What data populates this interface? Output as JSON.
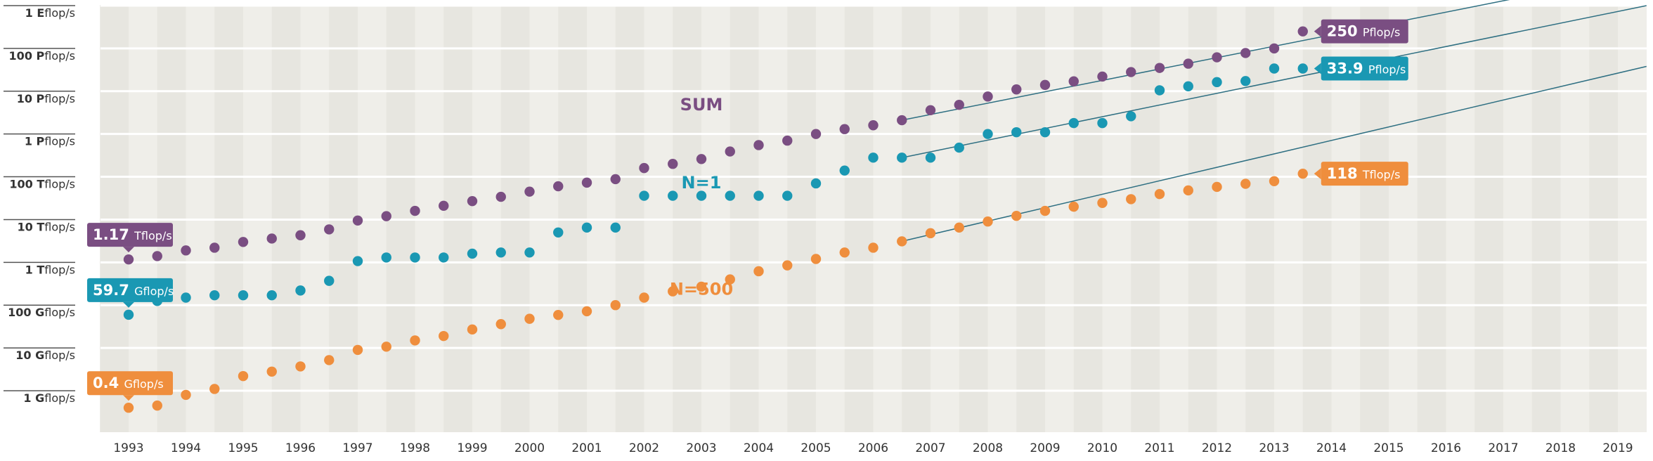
{
  "chart_data": {
    "type": "scatter",
    "title": "",
    "xlabel": "",
    "ylabel": "",
    "y_scale": "log",
    "y_unit": "flop/s",
    "ylim": [
      1000000000.0,
      1e+18
    ],
    "xlim": [
      1992.5,
      2019.5
    ],
    "x_ticks": [
      "1993",
      "1994",
      "1995",
      "1996",
      "1997",
      "1998",
      "1999",
      "2000",
      "2001",
      "2002",
      "2003",
      "2004",
      "2005",
      "2006",
      "2007",
      "2008",
      "2009",
      "2010",
      "2011",
      "2012",
      "2013",
      "2014",
      "2015",
      "2016",
      "2017",
      "2018",
      "2019"
    ],
    "y_ticks": [
      {
        "value": 1e+18,
        "prefix": "1",
        "unit_letter": "E",
        "suffix": "flop/s"
      },
      {
        "value": 1e+17,
        "prefix": "100",
        "unit_letter": "P",
        "suffix": "flop/s"
      },
      {
        "value": 1e+16,
        "prefix": "10",
        "unit_letter": "P",
        "suffix": "flop/s"
      },
      {
        "value": 1000000000000000.0,
        "prefix": "1",
        "unit_letter": "P",
        "suffix": "flop/s"
      },
      {
        "value": 100000000000000.0,
        "prefix": "100",
        "unit_letter": "T",
        "suffix": "flop/s"
      },
      {
        "value": 10000000000000.0,
        "prefix": "10",
        "unit_letter": "T",
        "suffix": "flop/s"
      },
      {
        "value": 1000000000000.0,
        "prefix": "1",
        "unit_letter": "T",
        "suffix": "flop/s"
      },
      {
        "value": 100000000000.0,
        "prefix": "100",
        "unit_letter": "G",
        "suffix": "flop/s"
      },
      {
        "value": 10000000000.0,
        "prefix": "10",
        "unit_letter": "G",
        "suffix": "flop/s"
      },
      {
        "value": 1000000000.0,
        "prefix": "1",
        "unit_letter": "G",
        "suffix": "flop/s"
      }
    ],
    "x": [
      1993.0,
      1993.5,
      1994.0,
      1994.5,
      1995.0,
      1995.5,
      1996.0,
      1996.5,
      1997.0,
      1997.5,
      1998.0,
      1998.5,
      1999.0,
      1999.5,
      2000.0,
      2000.5,
      2001.0,
      2001.5,
      2002.0,
      2002.5,
      2003.0,
      2003.5,
      2004.0,
      2004.5,
      2005.0,
      2005.5,
      2006.0,
      2006.5,
      2007.0,
      2007.5,
      2008.0,
      2008.5,
      2009.0,
      2009.5,
      2010.0,
      2010.5,
      2011.0,
      2011.5,
      2012.0,
      2012.5,
      2013.0,
      2013.5
    ],
    "series": [
      {
        "name": "SUM",
        "color": "#7a4e82",
        "values": [
          1170000000000.0,
          1400000000000.0,
          1900000000000.0,
          2200000000000.0,
          3000000000000.0,
          3600000000000.0,
          4300000000000.0,
          5900000000000.0,
          9500000000000.0,
          12000000000000.0,
          16000000000000.0,
          21000000000000.0,
          27000000000000.0,
          34000000000000.0,
          45000000000000.0,
          60000000000000.0,
          73000000000000.0,
          88000000000000.0,
          160000000000000.0,
          200000000000000.0,
          260000000000000.0,
          390000000000000.0,
          550000000000000.0,
          700000000000000.0,
          1000000000000000.0,
          1300000000000000.0,
          1600000000000000.0,
          2100000000000000.0,
          3600000000000000.0,
          4800000000000000.0,
          7500000000000000.0,
          1.1e+16,
          1.4e+16,
          1.7e+16,
          2.2e+16,
          2.8e+16,
          3.5e+16,
          4.4e+16,
          6.2e+16,
          7.8e+16,
          1e+17,
          2.5e+17
        ]
      },
      {
        "name": "N=1",
        "color": "#1a98b3",
        "values": [
          59700000000.0,
          125000000000.0,
          150000000000.0,
          170000000000.0,
          170000000000.0,
          170000000000.0,
          220000000000.0,
          370000000000.0,
          1070000000000.0,
          1300000000000.0,
          1300000000000.0,
          1300000000000.0,
          1600000000000.0,
          1700000000000.0,
          1700000000000.0,
          5000000000000.0,
          6500000000000.0,
          6500000000000.0,
          36000000000000.0,
          36000000000000.0,
          36000000000000.0,
          36000000000000.0,
          36000000000000.0,
          36000000000000.0,
          70000000000000.0,
          140000000000000.0,
          280000000000000.0,
          280000000000000.0,
          280000000000000.0,
          480000000000000.0,
          1000000000000000.0,
          1100000000000000.0,
          1100000000000000.0,
          1800000000000000.0,
          1800000000000000.0,
          2600000000000000.0,
          1.05e+16,
          1.3e+16,
          1.63e+16,
          1.73e+16,
          3.39e+16,
          3.39e+16
        ]
      },
      {
        "name": "N=500",
        "color": "#ef8e3d",
        "values": [
          400000000.0,
          450000000.0,
          800000000.0,
          1100000000.0,
          2200000000.0,
          2800000000.0,
          3700000000.0,
          5200000000.0,
          9000000000.0,
          10700000000.0,
          15000000000.0,
          19000000000.0,
          27000000000.0,
          36000000000.0,
          48000000000.0,
          59000000000.0,
          72000000000.0,
          100000000000.0,
          150000000000.0,
          210000000000.0,
          270000000000.0,
          400000000000.0,
          620000000000.0,
          850000000000.0,
          1200000000000.0,
          1700000000000.0,
          2200000000000.0,
          3100000000000.0,
          4800000000000.0,
          6500000000000.0,
          9000000000000.0,
          12200000000000.0,
          16000000000000.0,
          20000000000000.0,
          24500000000000.0,
          30000000000000.0,
          39500000000000.0,
          48000000000000.0,
          58000000000000.0,
          68500000000000.0,
          79000000000000.0,
          118000000000000.0
        ]
      }
    ],
    "series_labels": [
      {
        "series": "SUM",
        "text": "SUM",
        "at": [
          2003.0,
          3600000000000000.0
        ]
      },
      {
        "series": "N=1",
        "text": "N=1",
        "at": [
          2003.0,
          54000000000000.0
        ]
      },
      {
        "series": "N=500",
        "text": "N=500",
        "at": [
          2003.0,
          175000000000.0
        ]
      }
    ],
    "callouts": [
      {
        "series": "SUM",
        "at_x": 1993.0,
        "value": "1.17",
        "unit": "Tflop/s",
        "side": "above"
      },
      {
        "series": "N=1",
        "at_x": 1993.0,
        "value": "59.7",
        "unit": "Gflop/s",
        "side": "above"
      },
      {
        "series": "N=500",
        "at_x": 1993.0,
        "value": "0.4",
        "unit": "Gflop/s",
        "side": "above"
      },
      {
        "series": "SUM",
        "at_x": 2013.5,
        "value": "250",
        "unit": "Pflop/s",
        "side": "right"
      },
      {
        "series": "N=1",
        "at_x": 2013.5,
        "value": "33.9",
        "unit": "Pflop/s",
        "side": "right"
      },
      {
        "series": "N=500",
        "at_x": 2013.5,
        "value": "118",
        "unit": "Tflop/s",
        "side": "right"
      }
    ],
    "trend_lines": [
      {
        "series": "SUM",
        "from": [
          2006.5,
          2100000000000000.0
        ],
        "to": [
          2019.5,
          6e+18
        ]
      },
      {
        "series": "N=1",
        "from": [
          2006.5,
          280000000000000.0
        ],
        "to": [
          2019.5,
          1e+18
        ]
      },
      {
        "series": "N=500",
        "from": [
          2006.5,
          3100000000000.0
        ],
        "to": [
          2019.5,
          3.8e+16
        ]
      }
    ],
    "grid": true,
    "legend": "none",
    "colors": {
      "band_light": "#efeee9",
      "band_dark": "#e7e6e0",
      "gridline": "#ffffff",
      "axis_text": "#333333",
      "trend": "#2e6f82"
    }
  }
}
